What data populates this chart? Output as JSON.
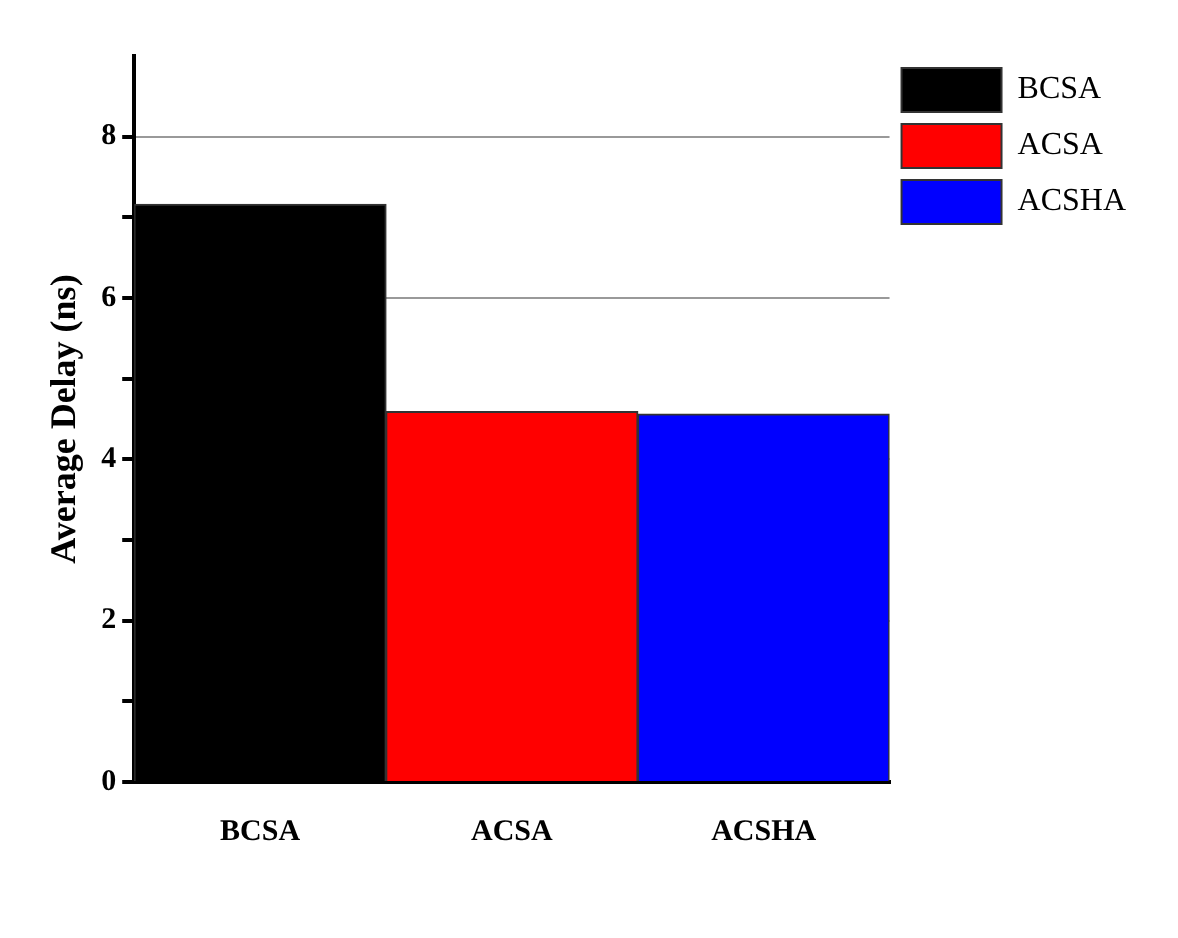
{
  "chart_data": {
    "type": "bar",
    "ylabel": "Average Delay (ns)",
    "categories": [
      "BCSA",
      "ACSA",
      "ACSHA"
    ],
    "series": [
      {
        "name": "BCSA",
        "color": "#000000",
        "values": [
          7.16,
          null,
          null
        ]
      },
      {
        "name": "ACSA",
        "color": "#ff0000",
        "values": [
          null,
          4.59,
          null
        ]
      },
      {
        "name": "ACSHA",
        "color": "#0000ff",
        "values": [
          null,
          null,
          4.56
        ]
      }
    ],
    "ylim": [
      0,
      9
    ],
    "yticks": [
      0,
      {
        "value": 1,
        "label": null
      },
      2,
      {
        "value": 3,
        "label": null
      },
      4,
      {
        "value": 5,
        "label": null
      },
      6,
      {
        "value": 7,
        "label": null
      },
      8
    ],
    "grid": "y",
    "legend": "right"
  }
}
